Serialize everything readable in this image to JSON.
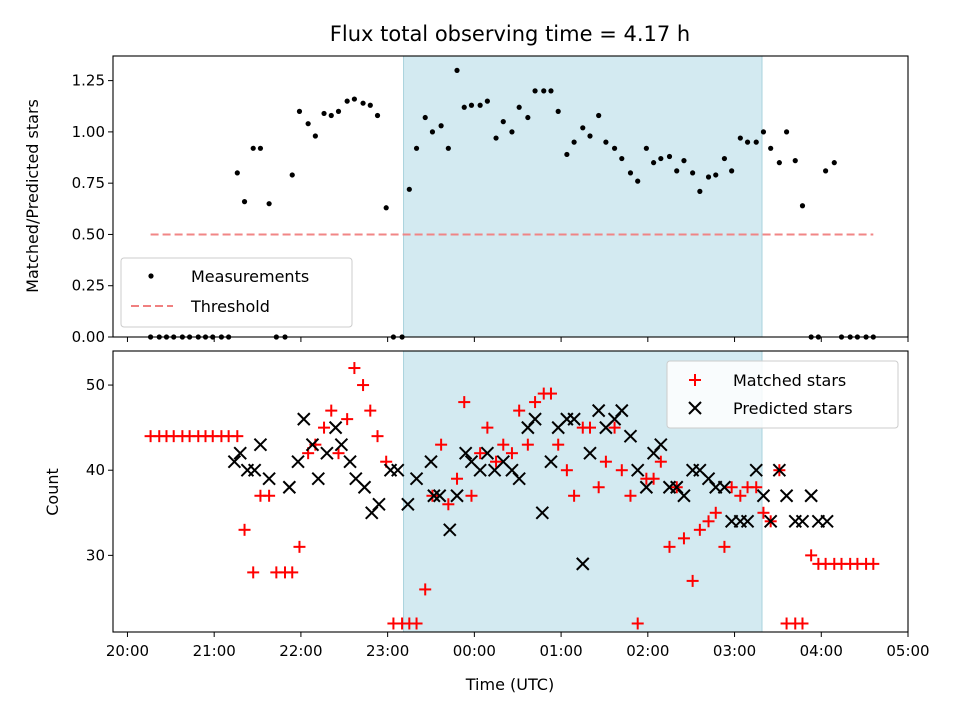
{
  "chart_data": [
    {
      "type": "scatter",
      "title": "Flux total observing time = 4.17 h",
      "ylabel": "Matched/Predicted stars",
      "xlim": [
        "20:00",
        "05:00"
      ],
      "ylim": [
        0,
        1.37
      ],
      "yticks": [
        "0.00",
        "0.25",
        "0.50",
        "0.75",
        "1.00",
        "1.25"
      ],
      "highlight_span": [
        "23:11",
        "03:19"
      ],
      "highlight_color": "#d3eaf1",
      "legend_position": "lower-left",
      "series": [
        {
          "name": "Measurements",
          "marker": "dot",
          "color": "#000000",
          "x": [
            "20:16",
            "20:22",
            "20:27",
            "20:32",
            "20:38",
            "20:43",
            "20:49",
            "20:54",
            "20:59",
            "21:05",
            "21:10",
            "21:16",
            "21:21",
            "21:27",
            "21:32",
            "21:38",
            "21:43",
            "21:49",
            "21:54",
            "21:59",
            "22:05",
            "22:10",
            "22:16",
            "22:21",
            "22:26",
            "22:32",
            "22:37",
            "22:43",
            "22:48",
            "22:53",
            "22:59",
            "23:04",
            "23:10",
            "23:15",
            "23:20",
            "23:26",
            "23:31",
            "23:37",
            "23:42",
            "23:48",
            "23:53",
            "23:58",
            "00:04",
            "00:09",
            "00:15",
            "00:20",
            "00:26",
            "00:31",
            "00:37",
            "00:42",
            "00:48",
            "00:53",
            "00:58",
            "01:04",
            "01:09",
            "01:15",
            "01:20",
            "01:26",
            "01:31",
            "01:37",
            "01:42",
            "01:48",
            "01:53",
            "01:59",
            "02:04",
            "02:09",
            "02:15",
            "02:20",
            "02:25",
            "02:31",
            "02:36",
            "02:42",
            "02:47",
            "02:53",
            "02:58",
            "03:04",
            "03:09",
            "03:15",
            "03:20",
            "03:25",
            "03:31",
            "03:36",
            "03:42",
            "03:47",
            "03:53",
            "03:58",
            "04:03",
            "04:09",
            "04:14",
            "04:20",
            "04:25",
            "04:31",
            "04:36"
          ],
          "y": [
            0,
            0,
            0,
            0,
            0,
            0,
            0,
            0,
            0,
            0,
            0,
            0.8,
            0.66,
            0.92,
            0.92,
            0.65,
            0,
            0,
            0.79,
            1.1,
            1.04,
            0.98,
            1.09,
            1.08,
            1.1,
            1.15,
            1.16,
            1.14,
            1.13,
            1.08,
            0.63,
            0,
            0,
            0.72,
            0.92,
            1.07,
            1.0,
            1.03,
            0.92,
            1.3,
            1.12,
            1.13,
            1.13,
            1.15,
            0.97,
            1.05,
            1.0,
            1.12,
            1.07,
            1.2,
            1.2,
            1.2,
            1.1,
            0.89,
            0.95,
            1.02,
            0.98,
            1.08,
            0.95,
            0.92,
            0.87,
            0.8,
            0.76,
            0.92,
            0.85,
            0.87,
            0.88,
            0.81,
            0.86,
            0.8,
            0.71,
            0.78,
            0.79,
            0.87,
            0.81,
            0.97,
            0.95,
            0.95,
            1.0,
            0.92,
            0.85,
            1.0,
            0.86,
            0.64,
            0,
            0,
            0.81,
            0.85,
            0,
            0,
            0,
            0,
            0
          ]
        },
        {
          "name": "Threshold",
          "marker": "dashed-line",
          "color": "#f08080",
          "x": [
            "20:16",
            "04:36"
          ],
          "y": [
            0.5,
            0.5
          ]
        }
      ]
    },
    {
      "type": "scatter",
      "xlabel": "Time (UTC)",
      "ylabel": "Count",
      "xlim": [
        "20:00",
        "05:00"
      ],
      "ylim": [
        21,
        54
      ],
      "yticks": [
        "30",
        "40",
        "50"
      ],
      "xticks": [
        "20:00",
        "21:00",
        "22:00",
        "23:00",
        "00:00",
        "01:00",
        "02:00",
        "03:00",
        "04:00",
        "05:00"
      ],
      "highlight_span": [
        "23:11",
        "03:19"
      ],
      "highlight_color": "#d3eaf1",
      "legend_position": "top-right",
      "series": [
        {
          "name": "Matched stars",
          "marker": "plus",
          "color": "#ff0000",
          "x": [
            "20:16",
            "20:22",
            "20:27",
            "20:32",
            "20:38",
            "20:43",
            "20:49",
            "20:54",
            "20:59",
            "21:05",
            "21:10",
            "21:16",
            "21:21",
            "21:27",
            "21:32",
            "21:38",
            "21:43",
            "21:49",
            "21:54",
            "21:59",
            "22:05",
            "22:10",
            "22:16",
            "22:21",
            "22:26",
            "22:32",
            "22:37",
            "22:43",
            "22:48",
            "22:53",
            "22:59",
            "23:04",
            "23:10",
            "23:15",
            "23:20",
            "23:26",
            "23:31",
            "23:37",
            "23:42",
            "23:48",
            "23:53",
            "23:58",
            "00:04",
            "00:09",
            "00:15",
            "00:20",
            "00:26",
            "00:31",
            "00:37",
            "00:42",
            "00:48",
            "00:53",
            "00:58",
            "01:04",
            "01:09",
            "01:15",
            "01:20",
            "01:26",
            "01:31",
            "01:37",
            "01:42",
            "01:48",
            "01:53",
            "01:59",
            "02:04",
            "02:09",
            "02:15",
            "02:20",
            "02:25",
            "02:31",
            "02:36",
            "02:42",
            "02:47",
            "02:53",
            "02:58",
            "03:04",
            "03:09",
            "03:15",
            "03:20",
            "03:25",
            "03:31",
            "03:36",
            "03:42",
            "03:47",
            "03:53",
            "03:58",
            "04:03",
            "04:09",
            "04:14",
            "04:20",
            "04:25",
            "04:31",
            "04:36"
          ],
          "y": [
            44,
            44,
            44,
            44,
            44,
            44,
            44,
            44,
            44,
            44,
            44,
            44,
            33,
            28,
            37,
            37,
            28,
            28,
            28,
            31,
            42,
            43,
            45,
            47,
            42,
            46,
            52,
            50,
            47,
            44,
            41,
            22,
            22,
            22,
            22,
            26,
            37,
            43,
            36,
            39,
            48,
            37,
            42,
            45,
            41,
            43,
            42,
            47,
            43,
            48,
            49,
            49,
            43,
            40,
            37,
            45,
            45,
            38,
            41,
            45,
            40,
            37,
            22,
            39,
            39,
            41,
            31,
            38,
            32,
            27,
            33,
            34,
            35,
            31,
            38,
            37,
            38,
            38,
            35,
            34,
            40,
            22,
            22,
            22,
            30,
            29,
            29,
            29,
            29,
            29,
            29,
            29,
            29
          ]
        },
        {
          "name": "Predicted stars",
          "marker": "x",
          "color": "#000000",
          "x": [
            "21:14",
            "21:18",
            "21:23",
            "21:28",
            "21:32",
            "21:38",
            "21:52",
            "21:58",
            "22:02",
            "22:08",
            "22:12",
            "22:18",
            "22:24",
            "22:28",
            "22:34",
            "22:38",
            "22:44",
            "22:49",
            "22:54",
            "23:02",
            "23:07",
            "23:14",
            "23:20",
            "23:30",
            "23:32",
            "23:36",
            "23:43",
            "23:48",
            "23:54",
            "23:58",
            "00:04",
            "00:09",
            "00:14",
            "00:20",
            "00:26",
            "00:31",
            "00:37",
            "00:42",
            "00:47",
            "00:53",
            "00:58",
            "01:04",
            "01:09",
            "01:15",
            "01:20",
            "01:26",
            "01:31",
            "01:37",
            "01:42",
            "01:48",
            "01:53",
            "01:59",
            "02:04",
            "02:09",
            "02:15",
            "02:20",
            "02:25",
            "02:31",
            "02:36",
            "02:42",
            "02:47",
            "02:53",
            "02:58",
            "03:04",
            "03:09",
            "03:15",
            "03:20",
            "03:25",
            "03:31",
            "03:36",
            "03:42",
            "03:47",
            "03:53",
            "03:58",
            "04:04"
          ],
          "y": [
            41,
            42,
            40,
            40,
            43,
            39,
            38,
            41,
            46,
            43,
            39,
            42,
            45,
            43,
            41,
            39,
            38,
            35,
            36,
            40,
            40,
            36,
            39,
            41,
            37,
            37,
            33,
            37,
            42,
            41,
            40,
            42,
            40,
            41,
            40,
            39,
            45,
            46,
            35,
            41,
            45,
            46,
            46,
            29,
            42,
            47,
            45,
            46,
            47,
            44,
            40,
            38,
            42,
            43,
            38,
            38,
            37,
            40,
            40,
            39,
            38,
            38,
            34,
            34,
            34,
            40,
            37,
            34,
            40,
            37,
            34,
            34,
            37,
            34,
            34
          ]
        }
      ]
    }
  ]
}
